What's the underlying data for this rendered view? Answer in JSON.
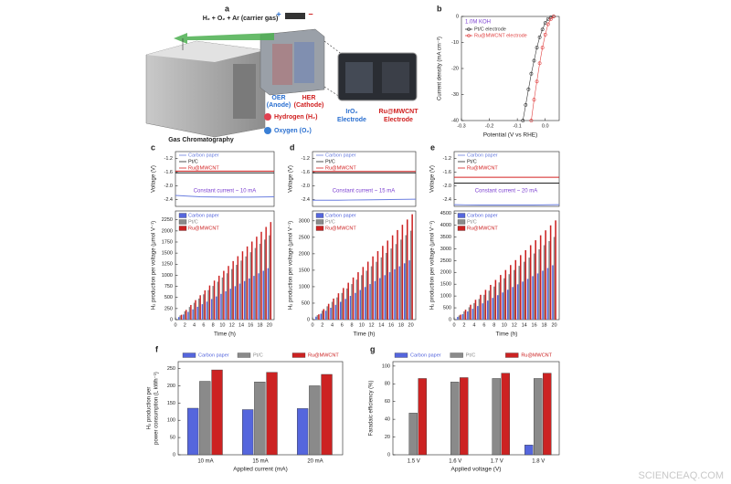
{
  "illustration": {
    "panel": "a",
    "gas": "H₂ + O₂ + Ar (carrier gas)",
    "plus": "+",
    "minus": "−",
    "oer": [
      "OER",
      "(Anode)"
    ],
    "her": [
      "HER",
      "(Cathode)"
    ],
    "hydrogen": "Hydrogen (H₂)",
    "oxygen": "Oxygen (O₂)",
    "iro2": [
      "IrO₂",
      "Electrode"
    ],
    "ru": [
      "Ru@MWCNT",
      "Electrode"
    ],
    "gc": "Gas Chromatography"
  },
  "chart_data": [
    {
      "type": "line",
      "panel": "b",
      "markers": true,
      "annotation": "1.0M KOH",
      "xlabel": "Potential (V vs RHE)",
      "ylabel": "Current density (mA cm⁻²)",
      "legend": "top-left",
      "x": [
        -0.08,
        -0.07,
        -0.06,
        -0.05,
        -0.04,
        -0.03,
        -0.02,
        -0.01,
        0.0,
        0.01,
        0.02,
        0.03
      ],
      "series": [
        {
          "name": "Pt/C electrode",
          "color": "#333333",
          "values": [
            -40,
            -34,
            -28,
            -22,
            -17,
            -12,
            -8,
            -5,
            -2.5,
            -1,
            -0.3,
            0
          ]
        },
        {
          "name": "Ru@MWCNT electrode",
          "color": "#e04040",
          "values": [
            null,
            null,
            null,
            -40,
            -32,
            -25,
            -18,
            -12,
            -7,
            -3,
            -1,
            0
          ]
        }
      ],
      "xlim": [
        -0.3,
        0.05
      ],
      "xticks": [
        -0.3,
        -0.2,
        -0.1,
        {
          "value": 0,
          "label": "0.0"
        }
      ],
      "ylim": [
        -40,
        0
      ],
      "yticks": [
        -40,
        -30,
        -20,
        -10,
        0
      ]
    },
    {
      "type": "line",
      "panel": "c",
      "annotation": "Constant current ~ 10 mA",
      "ylabel": "Voltage (V)",
      "legend": "top-left",
      "x": [
        0,
        5,
        10,
        15,
        20
      ],
      "series": [
        {
          "name": "Carbon paper",
          "color": "#6b7fe0",
          "values": [
            -2.28,
            -2.32,
            -2.33,
            -2.33,
            -2.32
          ]
        },
        {
          "name": "Pt/C",
          "color": "#222222",
          "values": [
            -1.62,
            -1.62,
            -1.62,
            -1.62,
            -1.62
          ]
        },
        {
          "name": "Ru@MWCNT",
          "color": "#d42020",
          "values": [
            -1.57,
            -1.57,
            -1.57,
            -1.57,
            -1.57
          ]
        }
      ],
      "xlim": [
        0,
        20
      ],
      "ylim": [
        -2.6,
        -1.0
      ],
      "yticks": [
        -1.2,
        -1.6,
        {
          "value": -2,
          "label": "-2.0"
        },
        -2.4
      ]
    },
    {
      "type": "bar",
      "xlabel": "Time (h)",
      "ylabel": "H₂ production per voltage (μmol V⁻¹)",
      "legend": "top-left",
      "x": [
        1,
        2,
        3,
        4,
        5,
        6,
        7,
        8,
        9,
        10,
        11,
        12,
        13,
        14,
        15,
        16,
        17,
        18,
        19,
        20
      ],
      "series": [
        {
          "name": "Carbon paper",
          "color": "#5566dd",
          "values": [
            58,
            116,
            174,
            232,
            290,
            348,
            406,
            464,
            522,
            580,
            638,
            696,
            754,
            812,
            870,
            928,
            986,
            1044,
            1102,
            1160
          ]
        },
        {
          "name": "Pt/C",
          "color": "#8a8a8a",
          "values": [
            95,
            190,
            285,
            380,
            475,
            570,
            665,
            760,
            855,
            950,
            1045,
            1140,
            1235,
            1330,
            1425,
            1520,
            1615,
            1710,
            1805,
            1900
          ]
        },
        {
          "name": "Ru@MWCNT",
          "color": "#cc2222",
          "values": [
            110,
            220,
            330,
            440,
            550,
            660,
            770,
            880,
            990,
            1100,
            1210,
            1320,
            1430,
            1540,
            1650,
            1760,
            1870,
            1980,
            2090,
            2200
          ]
        }
      ],
      "xlim": [
        0,
        21
      ],
      "xticks": [
        0,
        2,
        4,
        6,
        8,
        10,
        12,
        14,
        16,
        18,
        20
      ],
      "ylim": [
        0,
        2450
      ],
      "yticks": [
        0,
        250,
        500,
        750,
        1000,
        1250,
        1500,
        1750,
        2000,
        2250
      ]
    },
    {
      "type": "line",
      "panel": "d",
      "annotation": "Constant current ~ 15 mA",
      "ylabel": "Voltage (V)",
      "legend": "top-left",
      "x": [
        0,
        5,
        10,
        15,
        20
      ],
      "series": [
        {
          "name": "Carbon paper",
          "color": "#6b7fe0",
          "values": [
            -2.42,
            -2.42,
            -2.41,
            -2.4,
            -2.39
          ]
        },
        {
          "name": "Pt/C",
          "color": "#222222",
          "values": [
            -1.62,
            -1.62,
            -1.62,
            -1.62,
            -1.62
          ]
        },
        {
          "name": "Ru@MWCNT",
          "color": "#d42020",
          "values": [
            -1.58,
            -1.58,
            -1.58,
            -1.58,
            -1.58
          ]
        }
      ],
      "xlim": [
        0,
        20
      ],
      "ylim": [
        -2.6,
        -1.0
      ],
      "yticks": [
        -1.2,
        -1.6,
        {
          "value": -2,
          "label": "-2.0"
        },
        -2.4
      ]
    },
    {
      "type": "bar",
      "xlabel": "Time (h)",
      "ylabel": "H₂ production per voltage (μmol V⁻¹)",
      "legend": "top-left",
      "x": [
        1,
        2,
        3,
        4,
        5,
        6,
        7,
        8,
        9,
        10,
        11,
        12,
        13,
        14,
        15,
        16,
        17,
        18,
        19,
        20
      ],
      "series": [
        {
          "name": "Carbon paper",
          "color": "#5566dd",
          "values": [
            90,
            180,
            270,
            360,
            450,
            540,
            630,
            720,
            810,
            900,
            990,
            1080,
            1170,
            1260,
            1350,
            1440,
            1530,
            1620,
            1710,
            1800
          ]
        },
        {
          "name": "Pt/C",
          "color": "#8a8a8a",
          "values": [
            135,
            270,
            405,
            540,
            675,
            810,
            945,
            1080,
            1215,
            1350,
            1485,
            1620,
            1755,
            1890,
            2025,
            2160,
            2295,
            2430,
            2565,
            2700
          ]
        },
        {
          "name": "Ru@MWCNT",
          "color": "#cc2222",
          "values": [
            160,
            320,
            480,
            640,
            800,
            960,
            1120,
            1280,
            1440,
            1600,
            1760,
            1920,
            2080,
            2240,
            2400,
            2560,
            2720,
            2880,
            3040,
            3200
          ]
        }
      ],
      "xlim": [
        0,
        21
      ],
      "xticks": [
        0,
        2,
        4,
        6,
        8,
        10,
        12,
        14,
        16,
        18,
        20
      ],
      "ylim": [
        0,
        3300
      ],
      "yticks": [
        0,
        500,
        1000,
        1500,
        2000,
        2500,
        3000
      ]
    },
    {
      "type": "line",
      "panel": "e",
      "annotation": "Constant current ~ 20 mA",
      "ylabel": "Voltage (V)",
      "legend": "top-left",
      "x": [
        0,
        5,
        10,
        15,
        20
      ],
      "series": [
        {
          "name": "Carbon paper",
          "color": "#6b7fe0",
          "values": [
            -2.55,
            -2.56,
            -2.56,
            -2.56,
            -2.55
          ]
        },
        {
          "name": "Pt/C",
          "color": "#222222",
          "values": [
            -1.92,
            -1.92,
            -1.92,
            -1.92,
            -1.92
          ]
        },
        {
          "name": "Ru@MWCNT",
          "color": "#d42020",
          "values": [
            -1.75,
            -1.75,
            -1.75,
            -1.75,
            -1.75
          ]
        }
      ],
      "xlim": [
        0,
        20
      ],
      "ylim": [
        -2.6,
        -1.0
      ],
      "yticks": [
        -1.2,
        -1.6,
        {
          "value": -2,
          "label": "-2.0"
        },
        -2.4
      ]
    },
    {
      "type": "bar",
      "xlabel": "Time (h)",
      "ylabel": "H₂ production per voltage (μmol V⁻¹)",
      "legend": "top-left",
      "x": [
        1,
        2,
        3,
        4,
        5,
        6,
        7,
        8,
        9,
        10,
        11,
        12,
        13,
        14,
        15,
        16,
        17,
        18,
        19,
        20
      ],
      "series": [
        {
          "name": "Carbon paper",
          "color": "#5566dd",
          "values": [
            115,
            230,
            345,
            460,
            575,
            690,
            805,
            920,
            1035,
            1150,
            1265,
            1380,
            1495,
            1610,
            1725,
            1840,
            1955,
            2070,
            2185,
            2300
          ]
        },
        {
          "name": "Pt/C",
          "color": "#8a8a8a",
          "values": [
            175,
            350,
            525,
            700,
            875,
            1050,
            1225,
            1400,
            1575,
            1750,
            1925,
            2100,
            2275,
            2450,
            2625,
            2800,
            2975,
            3150,
            3325,
            3500
          ]
        },
        {
          "name": "Ru@MWCNT",
          "color": "#cc2222",
          "values": [
            210,
            420,
            630,
            840,
            1050,
            1260,
            1470,
            1680,
            1890,
            2100,
            2310,
            2520,
            2730,
            2940,
            3150,
            3360,
            3570,
            3780,
            3990,
            4200
          ]
        }
      ],
      "xlim": [
        0,
        21
      ],
      "xticks": [
        0,
        2,
        4,
        6,
        8,
        10,
        12,
        14,
        16,
        18,
        20
      ],
      "ylim": [
        0,
        4600
      ],
      "yticks": [
        0,
        500,
        1000,
        1500,
        2000,
        2500,
        3000,
        3500,
        4000,
        4500
      ]
    },
    {
      "type": "bar",
      "panel": "f",
      "xlabel": "Applied current (mA)",
      "ylabel": [
        "H₂ production per",
        "power consumption (L kWh⁻¹)"
      ],
      "legend": "top",
      "categories": [
        "10 mA",
        "15 mA",
        "20 mA"
      ],
      "series": [
        {
          "name": "Carbon paper",
          "color": "#5566dd",
          "values": [
            135,
            131,
            134
          ]
        },
        {
          "name": "Pt/C",
          "color": "#8a8a8a",
          "values": [
            213,
            211,
            200
          ]
        },
        {
          "name": "Ru@MWCNT",
          "color": "#cc2222",
          "values": [
            246,
            239,
            233
          ]
        }
      ],
      "ylim": [
        0,
        270
      ],
      "yticks": [
        0,
        50,
        100,
        150,
        200,
        250
      ]
    },
    {
      "type": "bar",
      "panel": "g",
      "xlabel": "Applied voltage (V)",
      "ylabel": "Faradaic efficiency (%)",
      "legend": "top",
      "categories": [
        "1.5 V",
        "1.6 V",
        "1.7 V",
        "1.8 V"
      ],
      "series": [
        {
          "name": "Carbon paper",
          "color": "#5566dd",
          "values": [
            null,
            null,
            null,
            11
          ]
        },
        {
          "name": "Pt/C",
          "color": "#8a8a8a",
          "values": [
            47,
            82,
            86,
            86
          ]
        },
        {
          "name": "Ru@MWCNT",
          "color": "#cc2222",
          "values": [
            86,
            87,
            92,
            92
          ]
        }
      ],
      "ylim": [
        0,
        105
      ],
      "yticks": [
        0,
        20,
        40,
        60,
        80,
        100
      ]
    }
  ],
  "watermark": "SCIENCEAQ.COM"
}
